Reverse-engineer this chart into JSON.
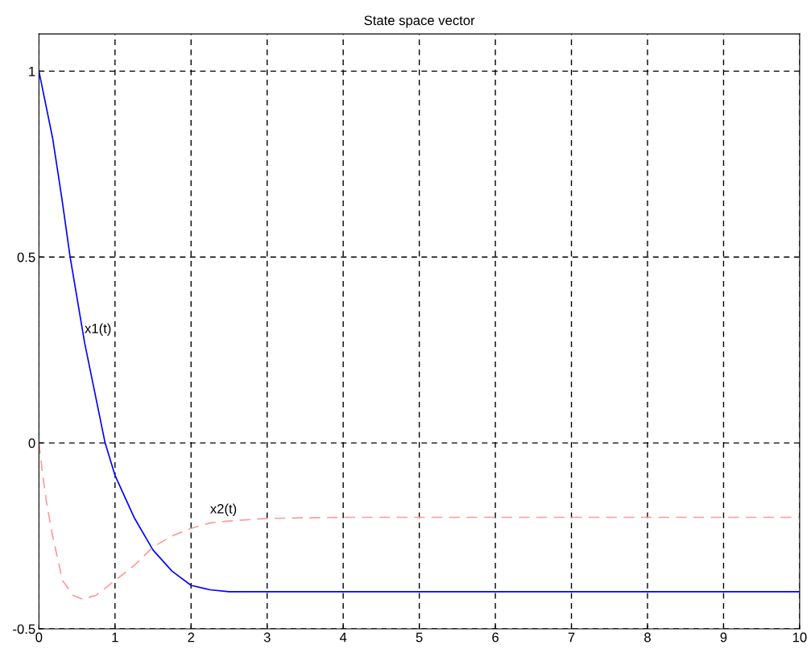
{
  "chart_data": {
    "type": "line",
    "title": "State space vector",
    "series": [
      {
        "color": "#0000ff",
        "line_style": "solid",
        "x": [
          0,
          0.18,
          0.3,
          0.41,
          0.6,
          0.87,
          1,
          1.25,
          1.5,
          1.75,
          2,
          2.25,
          2.5,
          3,
          4,
          5,
          6,
          7,
          8,
          9,
          10
        ],
        "values": [
          1,
          0.82,
          0.66,
          0.5,
          0.27,
          0,
          -0.087,
          -0.2,
          -0.288,
          -0.345,
          -0.383,
          -0.395,
          -0.4,
          -0.4,
          -0.4,
          -0.4,
          -0.4,
          -0.4,
          -0.4,
          -0.4,
          -0.4
        ]
      },
      {
        "color": "#ff9999",
        "line_style": "dashed",
        "x": [
          0,
          0.05,
          0.1,
          0.18,
          0.31,
          0.45,
          0.57,
          0.75,
          1,
          1.25,
          1.5,
          1.75,
          2,
          2.25,
          2.5,
          3,
          4,
          5,
          6,
          7,
          8,
          9,
          10
        ],
        "values": [
          0,
          -0.087,
          -0.16,
          -0.25,
          -0.37,
          -0.41,
          -0.42,
          -0.41,
          -0.37,
          -0.33,
          -0.28,
          -0.25,
          -0.23,
          -0.215,
          -0.21,
          -0.203,
          -0.2,
          -0.2,
          -0.2,
          -0.2,
          -0.2,
          -0.2,
          -0.2
        ]
      }
    ],
    "annotations": [
      {
        "text": "x1(t)",
        "x": 0.6,
        "y": 0.27
      },
      {
        "text": "x2(t)",
        "x": 2.25,
        "y": -0.215
      }
    ],
    "xlim": [
      0,
      10
    ],
    "xticks": [
      0,
      1,
      2,
      3,
      4,
      5,
      6,
      7,
      8,
      9,
      10
    ],
    "ylim": [
      -0.5,
      1.1
    ],
    "yticks": [
      -0.5,
      0,
      0.5,
      1
    ],
    "grid": true,
    "marker": "none"
  }
}
